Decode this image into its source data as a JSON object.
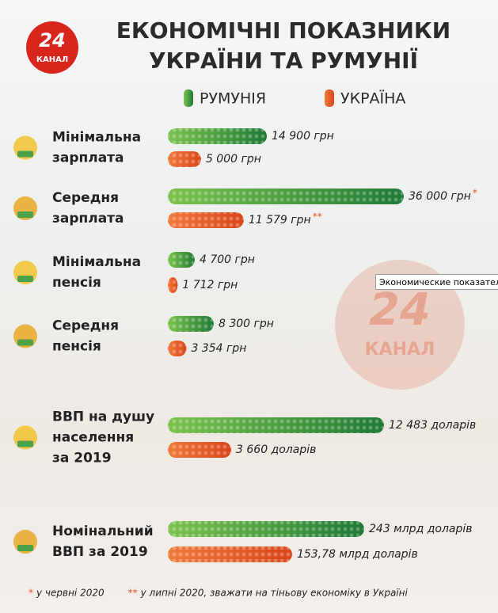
{
  "header": {
    "logo_number": "24",
    "logo_text": "КАНАЛ",
    "title_lines": [
      "ЕКОНОМІЧНІ ПОКАЗНИКИ",
      "УКРАЇНИ ТА РУМУНІЇ"
    ]
  },
  "legend": {
    "romania": "РУМУНІЯ",
    "ukraine": "УКРАЇНА"
  },
  "groups": [
    {
      "label_lines": [
        "Мінімальна",
        "зарплата"
      ],
      "romania": {
        "value": 14900,
        "label": "14 900 грн"
      },
      "ukraine": {
        "value": 5000,
        "label": "5 000 грн"
      }
    },
    {
      "label_lines": [
        "Середня",
        "зарплата"
      ],
      "romania": {
        "value": 36000,
        "label": "36 000 грн",
        "note": "*"
      },
      "ukraine": {
        "value": 11579,
        "label": "11 579 грн",
        "note": "**"
      }
    },
    {
      "label_lines": [
        "Мінімальна",
        "пенсія"
      ],
      "romania": {
        "value": 4700,
        "label": "4 700 грн"
      },
      "ukraine": {
        "value": 1712,
        "label": "1 712 грн"
      }
    },
    {
      "label_lines": [
        "Середня",
        "пенсія"
      ],
      "romania": {
        "value": 8300,
        "label": "8  300 грн"
      },
      "ukraine": {
        "value": 3354,
        "label": "3 354 грн"
      }
    },
    {
      "label_lines": [
        "ВВП на душу",
        "населення",
        "за 2019"
      ],
      "romania": {
        "value": 12483,
        "label": "12 483 доларів"
      },
      "ukraine": {
        "value": 3660,
        "label": "3 660 доларів"
      }
    },
    {
      "label_lines": [
        "Номінальний",
        "ВВП за 2019"
      ],
      "romania": {
        "value": 243,
        "label": "243 млрд доларів"
      },
      "ukraine": {
        "value": 153.78,
        "label": "153,78 млрд доларів"
      }
    }
  ],
  "footnotes": [
    {
      "mark": "*",
      "text": "у червні 2020"
    },
    {
      "mark": "**",
      "text": "у липні 2020, зважати на тіньову економіку в Україні"
    }
  ],
  "watermark": {
    "number": "24",
    "text": "КАНАЛ"
  },
  "tooltip": "Экономические показатели"
}
